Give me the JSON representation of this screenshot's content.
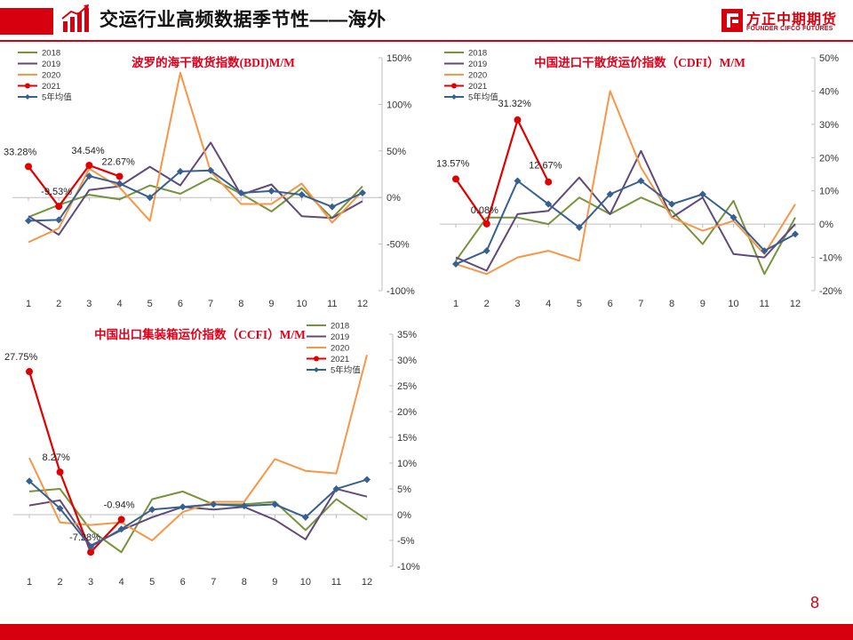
{
  "header": {
    "title": "交运行业高频数据季节性——海外"
  },
  "logo": {
    "name": "方正中期期货",
    "name_en": "FOUNDER CIFCO FUTURES"
  },
  "page_number": "8",
  "colors": {
    "accent": "#d7000f"
  },
  "chart_data": [
    {
      "type": "line",
      "title": "波罗的海干散货指数(BDI)M/M",
      "categories": [
        "1",
        "2",
        "3",
        "4",
        "5",
        "6",
        "7",
        "8",
        "9",
        "10",
        "11",
        "12"
      ],
      "ylim": [
        -100,
        150
      ],
      "yticks": [
        "-100%",
        "-50%",
        "0%",
        "50%",
        "100%",
        "150%"
      ],
      "ytick_values": [
        -100,
        -50,
        0,
        50,
        100,
        150
      ],
      "legend_position": "top-left",
      "series": [
        {
          "name": "2018",
          "color": "#77933c",
          "values": [
            -21,
            -8,
            3,
            -2,
            13,
            4,
            21,
            4,
            -15,
            10,
            -22,
            12
          ]
        },
        {
          "name": "2019",
          "color": "#604a7b",
          "values": [
            -20,
            -40,
            8,
            12,
            33,
            13,
            59,
            3,
            14,
            -20,
            -22,
            -4
          ]
        },
        {
          "name": "2020",
          "color": "#f79646",
          "values": [
            -48,
            -33,
            31,
            11,
            -25,
            134,
            28,
            -7,
            -7,
            15,
            -27,
            7
          ]
        },
        {
          "name": "2021",
          "color": "#e00000",
          "values": [
            33.28,
            -9.53,
            34.54,
            22.67,
            null,
            null,
            null,
            null,
            null,
            null,
            null,
            null
          ],
          "labels": [
            "33.28%",
            "-9.53%",
            "34.54%",
            "22.67%"
          ]
        },
        {
          "name": "5年均值",
          "color": "#376092",
          "values": [
            -25,
            -24,
            23,
            15,
            0,
            28,
            29,
            5,
            7,
            3,
            -10,
            5
          ]
        }
      ]
    },
    {
      "type": "line",
      "title": "中国进口干散货运价指数（CDFI）M/M",
      "categories": [
        "1",
        "2",
        "3",
        "4",
        "5",
        "6",
        "7",
        "8",
        "9",
        "10",
        "11",
        "12"
      ],
      "ylim": [
        -20,
        50
      ],
      "yticks": [
        "-20%",
        "-10%",
        "0%",
        "10%",
        "20%",
        "30%",
        "40%",
        "50%"
      ],
      "ytick_values": [
        -20,
        -10,
        0,
        10,
        20,
        30,
        40,
        50
      ],
      "legend_position": "top-left",
      "series": [
        {
          "name": "2018",
          "color": "#77933c",
          "values": [
            -11,
            2,
            2,
            0,
            8,
            3,
            8,
            4,
            -6,
            7,
            -15,
            2
          ]
        },
        {
          "name": "2019",
          "color": "#604a7b",
          "values": [
            -10,
            -14,
            3,
            4,
            14,
            3,
            22,
            2,
            8,
            -9,
            -10,
            0
          ]
        },
        {
          "name": "2020",
          "color": "#f79646",
          "values": [
            -12,
            -15,
            -10,
            -8,
            -11,
            40,
            17,
            2,
            -2,
            1,
            -9,
            6
          ]
        },
        {
          "name": "2021",
          "color": "#e00000",
          "values": [
            13.57,
            0.08,
            31.32,
            12.67,
            null,
            null,
            null,
            null,
            null,
            null,
            null,
            null
          ],
          "labels": [
            "13.57%",
            "0.08%",
            "31.32%",
            "12.67%"
          ]
        },
        {
          "name": "5年均值",
          "color": "#376092",
          "values": [
            -12,
            -8,
            13,
            6,
            -1,
            9,
            13,
            6,
            9,
            2,
            -8,
            -3
          ]
        }
      ]
    },
    {
      "type": "line",
      "title": "中国出口集装箱运价指数（CCFI）M/M",
      "categories": [
        "1",
        "2",
        "3",
        "4",
        "5",
        "6",
        "7",
        "8",
        "9",
        "10",
        "11",
        "12"
      ],
      "ylim": [
        -10,
        35
      ],
      "yticks": [
        "-10%",
        "-5%",
        "0%",
        "5%",
        "10%",
        "15%",
        "20%",
        "25%",
        "30%",
        "35%"
      ],
      "ytick_values": [
        -10,
        -5,
        0,
        5,
        10,
        15,
        20,
        25,
        30,
        35
      ],
      "legend_position": "top-right",
      "series": [
        {
          "name": "2018",
          "color": "#77933c",
          "values": [
            4.5,
            5,
            -3,
            -7.3,
            3,
            4.5,
            2,
            2,
            2.5,
            -3,
            3,
            -1
          ]
        },
        {
          "name": "2019",
          "color": "#604a7b",
          "values": [
            1.8,
            2.8,
            -6,
            -3,
            -0.5,
            1.5,
            1,
            1.5,
            -1,
            -4.8,
            5,
            3.5
          ]
        },
        {
          "name": "2020",
          "color": "#f79646",
          "values": [
            11,
            -1.5,
            -2,
            -1.5,
            -5,
            0.5,
            2.5,
            2.5,
            10.8,
            8.5,
            8,
            31
          ]
        },
        {
          "name": "2021",
          "color": "#e00000",
          "values": [
            27.75,
            8.27,
            -7.28,
            -0.94,
            null,
            null,
            null,
            null,
            null,
            null,
            null,
            null
          ],
          "labels": [
            "27.75%",
            "8.27%",
            "-7.28%",
            "-0.94%"
          ]
        },
        {
          "name": "5年均值",
          "color": "#376092",
          "values": [
            6.5,
            1.2,
            -6.2,
            -2.8,
            1,
            1.5,
            2,
            1.7,
            2,
            -0.5,
            5,
            6.8
          ]
        }
      ]
    }
  ]
}
